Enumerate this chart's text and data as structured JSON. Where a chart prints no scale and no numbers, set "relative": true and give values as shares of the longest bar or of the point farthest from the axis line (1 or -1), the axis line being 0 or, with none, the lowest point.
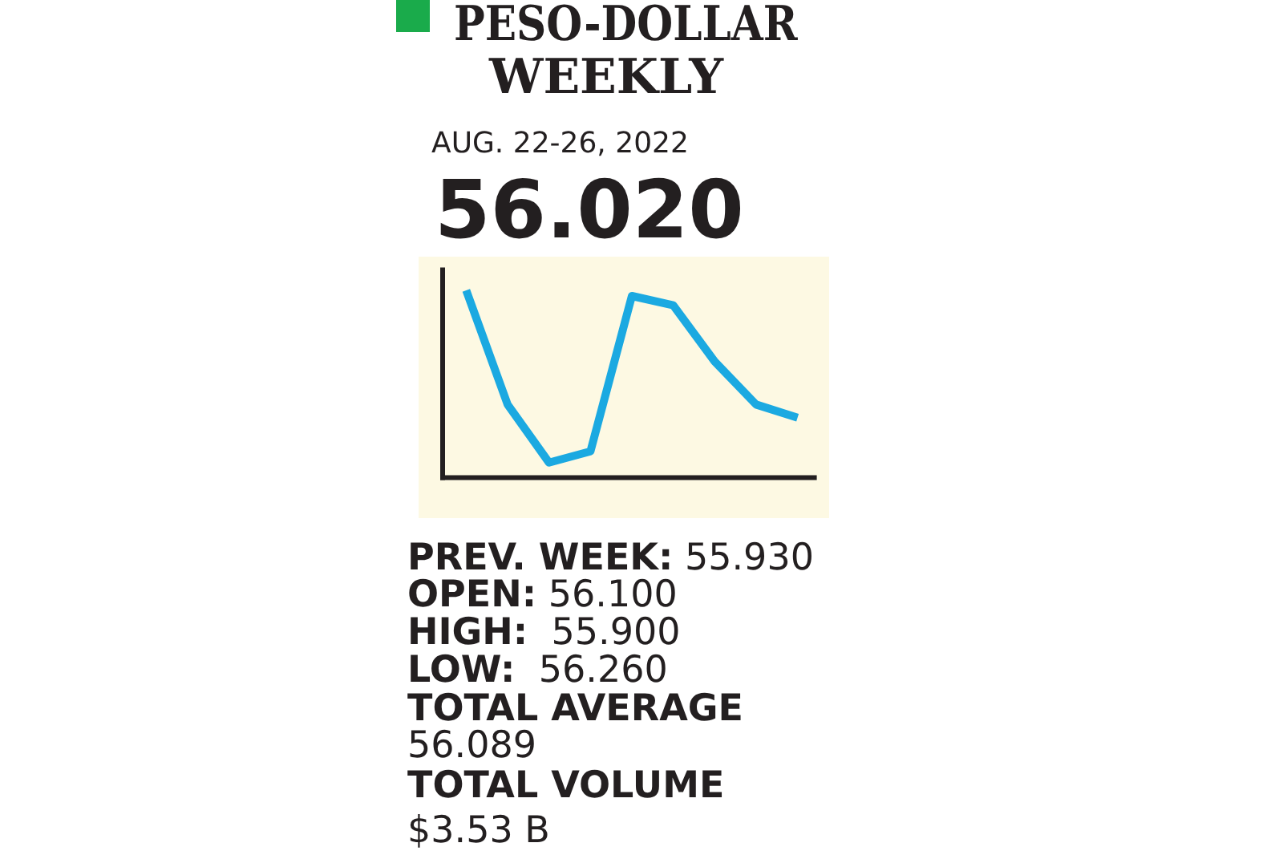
{
  "chart_data": {
    "type": "line",
    "title": "PESO-DOLLAR WEEKLY",
    "subtitle": "AUG. 22-26, 2022",
    "annotations": [
      "56.020",
      "PREV. WEEK: 55.930",
      "OPEN: 56.100",
      "HIGH:  55.900",
      "LOW:  56.260",
      "TOTAL AVERAGE",
      "56.089",
      "TOTAL VOLUME",
      "$3.53 B"
    ],
    "categories": [
      null,
      null,
      null,
      null,
      null,
      null,
      null,
      null,
      null
    ],
    "relative": true,
    "series": [
      {
        "color": "#1ba9e1",
        "values": [
          1,
          0.39,
          0.08,
          0.14,
          0.97,
          0.92,
          0.62,
          0.39,
          0.32
        ]
      }
    ]
  }
}
